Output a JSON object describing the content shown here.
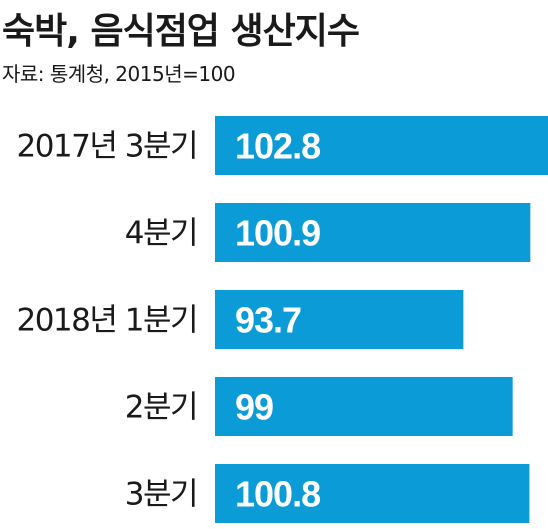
{
  "header": {
    "title": "숙박, 음식점업 생산지수",
    "source": "자료: 통계청, 2015년=100"
  },
  "colors": {
    "bar": "#0b9bd7",
    "value_text": "#ffffff",
    "text": "#1a1a1a"
  },
  "chart_data": {
    "type": "bar",
    "orientation": "horizontal",
    "title": "숙박, 음식점업 생산지수",
    "source": "자료: 통계청, 2015년=100",
    "categories": [
      "2017년 3분기",
      "4분기",
      "2018년 1분기",
      "2분기",
      "3분기"
    ],
    "values": [
      102.8,
      100.9,
      93.7,
      99,
      100.8
    ],
    "value_labels": [
      "102.8",
      "100.9",
      "93.7",
      "99",
      "100.8"
    ],
    "xlim": [
      0,
      102.8
    ],
    "grid": false,
    "legend": "none"
  }
}
